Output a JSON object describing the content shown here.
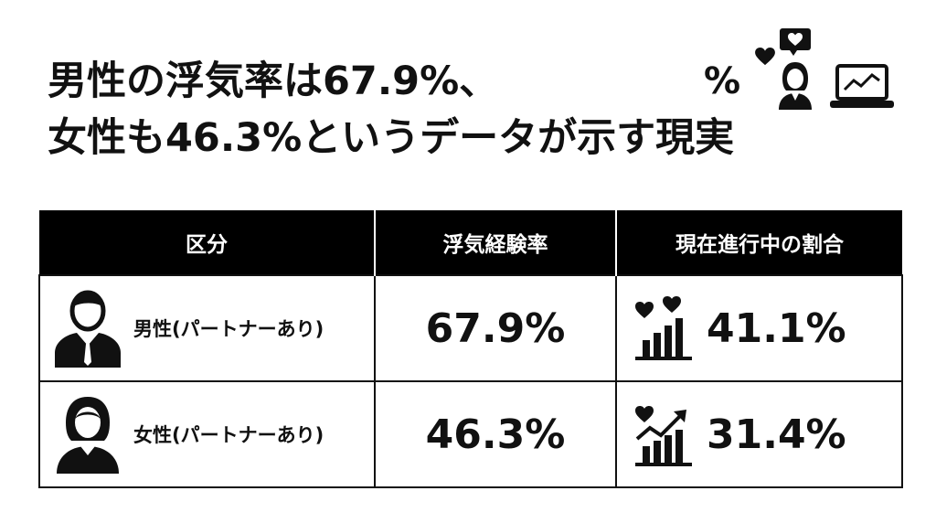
{
  "title": {
    "line1": "男性の浮気率は67.9%、",
    "line2": "女性も46.3%というデータが示す現実"
  },
  "decoration": {
    "percent_symbol": "%",
    "icons": [
      "percent-icon",
      "heart-icon",
      "chat-heart-icon",
      "woman-icon",
      "laptop-chart-icon"
    ]
  },
  "table": {
    "headers": [
      "区分",
      "浮気経験率",
      "現在進行中の割合"
    ],
    "rows": [
      {
        "category": "男性(パートナーあり)",
        "icon": "man-icon",
        "experience_rate": "67.9%",
        "current_icon": "hearts-bar-chart-icon",
        "current_rate": "41.1%"
      },
      {
        "category": "女性(パートナーあり)",
        "icon": "woman-icon",
        "experience_rate": "46.3%",
        "current_icon": "heart-trend-chart-icon",
        "current_rate": "31.4%"
      }
    ]
  },
  "colors": {
    "text": "#111111",
    "header_bg": "#000000",
    "header_text": "#ffffff",
    "background": "#ffffff"
  }
}
